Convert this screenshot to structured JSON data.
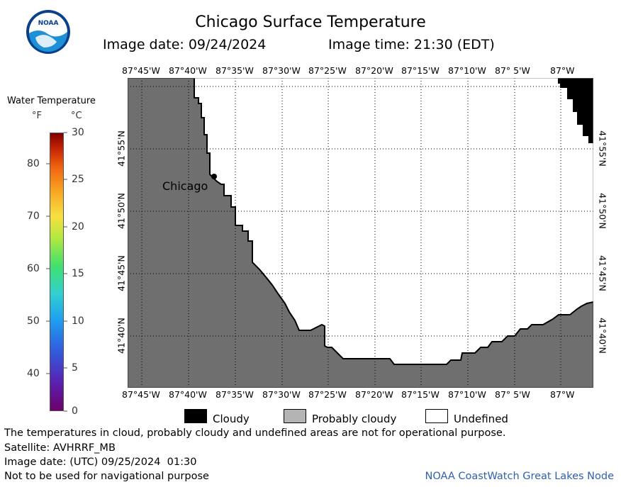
{
  "logo": {
    "text": "NOAA",
    "colors": {
      "top": "#ffffff",
      "bottom": "#1e90d6",
      "ring": "#0b3f8c"
    }
  },
  "header": {
    "title": "Chicago Surface Temperature",
    "date_label": "Image date: 09/24/2024",
    "time_label": "Image time: 21:30 (EDT)"
  },
  "colorbar": {
    "title": "Water Temperature",
    "unit_f": "°F",
    "unit_c": "°C",
    "f_ticks": [
      "80",
      "70",
      "60",
      "50",
      "40"
    ],
    "c_ticks": [
      "30",
      "25",
      "20",
      "15",
      "10",
      "5",
      "0"
    ]
  },
  "map": {
    "lon_labels": [
      "87°45'W",
      "87°40'W",
      "87°35'W",
      "87°30'W",
      "87°25'W",
      "87°20'W",
      "87°15'W",
      "87°10'W",
      "87° 5'W",
      "87°W"
    ],
    "lat_labels": [
      "41°55'N",
      "41°50'N",
      "41°45'N",
      "41°40'N"
    ],
    "city_label": "Chicago",
    "land_color": "#6f6f6f",
    "cloud_color": "#000000"
  },
  "legend": {
    "cloudy": "Cloudy",
    "probably_cloudy": "Probably cloudy",
    "undefined": "Undefined",
    "colors": {
      "cloudy": "#000000",
      "probably_cloudy": "#b4b4b4",
      "undefined": "#ffffff"
    }
  },
  "footer": {
    "disclaimer": "The temperatures in cloud, probably cloudy and undefined areas are not for operational purpose.",
    "satellite": "Satellite: AVHRRF_MB",
    "utc_date": "Image date: (UTC) 09/25/2024  01:30",
    "nav_warning": "Not to be used for navigational purpose",
    "credit": "NOAA CoastWatch Great Lakes Node",
    "credit_color": "#3060b0"
  }
}
